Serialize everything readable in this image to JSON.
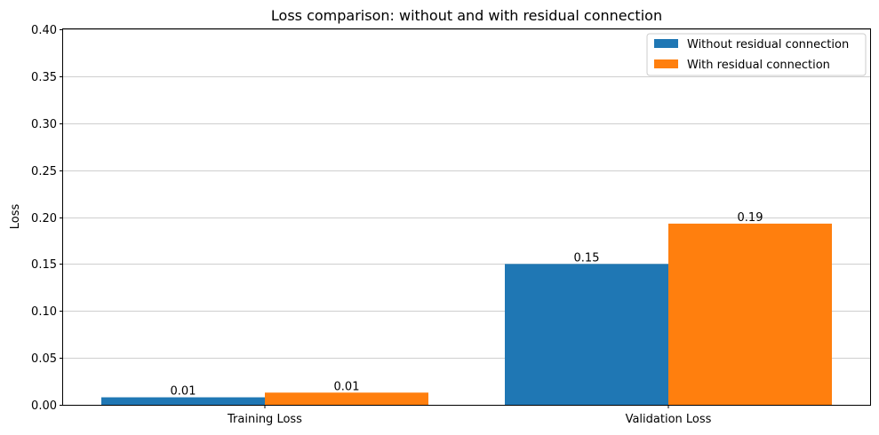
{
  "chart_data": {
    "type": "bar",
    "title": "Loss comparison: without and with residual connection",
    "xlabel": "",
    "ylabel": "Loss",
    "categories": [
      "Training Loss",
      "Validation Loss"
    ],
    "series": [
      {
        "name": "Without residual connection",
        "values": [
          0.008,
          0.15
        ],
        "labels": [
          "0.01",
          "0.15"
        ],
        "color": "#1f77b4"
      },
      {
        "name": "With residual connection",
        "values": [
          0.013,
          0.193
        ],
        "labels": [
          "0.01",
          "0.19"
        ],
        "color": "#ff7f0e"
      }
    ],
    "ylim": [
      0,
      0.4
    ],
    "yticks": [
      "0.00",
      "0.05",
      "0.10",
      "0.15",
      "0.20",
      "0.25",
      "0.30",
      "0.35",
      "0.40"
    ],
    "grid": "y",
    "legend": "top-right"
  }
}
